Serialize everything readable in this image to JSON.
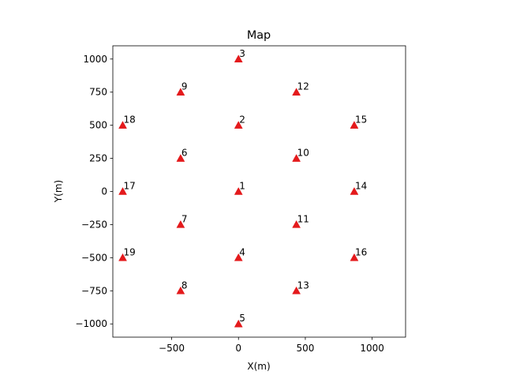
{
  "chart_data": {
    "type": "scatter",
    "title": "Map",
    "xlabel": "X(m)",
    "ylabel": "Y(m)",
    "xlim": [
      -940,
      1250
    ],
    "ylim": [
      -1100,
      1100
    ],
    "xticks": [
      -500,
      0,
      500,
      1000
    ],
    "yticks": [
      -1000,
      -750,
      -500,
      -250,
      0,
      250,
      500,
      750,
      1000
    ],
    "xtick_labels": [
      "−500",
      "0",
      "500",
      "1000"
    ],
    "ytick_labels": [
      "−1000",
      "−750",
      "−500",
      "−250",
      "0",
      "250",
      "500",
      "750",
      "1000"
    ],
    "marker": "triangle",
    "marker_color": "#e41a1c",
    "grid": false,
    "points": [
      {
        "label": "1",
        "x": 0,
        "y": 0
      },
      {
        "label": "2",
        "x": 0,
        "y": 500
      },
      {
        "label": "3",
        "x": 0,
        "y": 1000
      },
      {
        "label": "4",
        "x": 0,
        "y": -500
      },
      {
        "label": "5",
        "x": 0,
        "y": -1000
      },
      {
        "label": "6",
        "x": -433,
        "y": 250
      },
      {
        "label": "7",
        "x": -433,
        "y": -250
      },
      {
        "label": "8",
        "x": -433,
        "y": -750
      },
      {
        "label": "9",
        "x": -433,
        "y": 750
      },
      {
        "label": "10",
        "x": 433,
        "y": 250
      },
      {
        "label": "11",
        "x": 433,
        "y": -250
      },
      {
        "label": "12",
        "x": 433,
        "y": 750
      },
      {
        "label": "13",
        "x": 433,
        "y": -750
      },
      {
        "label": "14",
        "x": 866,
        "y": 0
      },
      {
        "label": "15",
        "x": 866,
        "y": 500
      },
      {
        "label": "16",
        "x": 866,
        "y": -500
      },
      {
        "label": "17",
        "x": -866,
        "y": 0
      },
      {
        "label": "18",
        "x": -866,
        "y": 500
      },
      {
        "label": "19",
        "x": -866,
        "y": -500
      }
    ]
  }
}
